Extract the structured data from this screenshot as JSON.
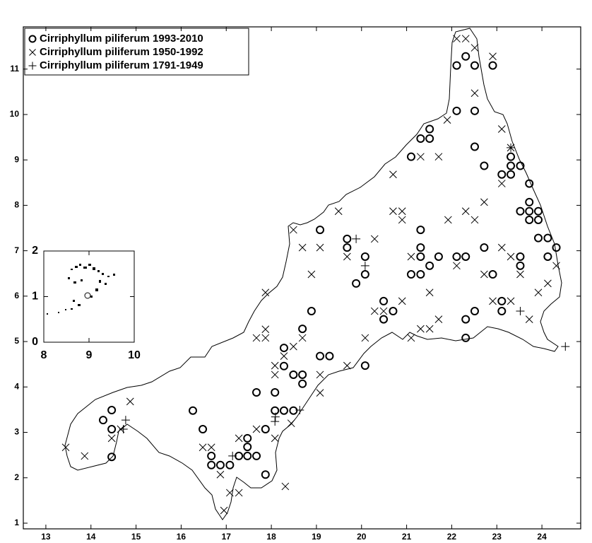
{
  "chart_data": [
    {
      "type": "scatter",
      "xlim": [
        12.5,
        24.86
      ],
      "ylim": [
        0.875,
        11.93
      ],
      "xticks": [
        13,
        14,
        15,
        16,
        17,
        18,
        19,
        20,
        21,
        22,
        23,
        24
      ],
      "yticks": [
        1,
        2,
        3,
        4,
        5,
        6,
        7,
        8,
        9,
        10,
        11
      ],
      "legend": "upper left",
      "series": [
        {
          "name": "Cirriphyllum piliferum 1993-2010",
          "color": "#000000",
          "marker": "circle",
          "x": [
            14.46,
            14.27,
            14.46,
            14.46,
            16.48,
            16.26,
            16.67,
            16.67,
            16.87,
            17.08,
            17.28,
            17.47,
            17.47,
            17.47,
            17.67,
            17.87,
            17.87,
            17.67,
            18.08,
            18.08,
            18.28,
            18.49,
            18.28,
            18.28,
            18.49,
            18.69,
            18.69,
            18.69,
            18.89,
            19.08,
            19.29,
            19.08,
            19.68,
            19.68,
            19.88,
            20.08,
            20.08,
            20.08,
            20.49,
            20.49,
            20.7,
            21.1,
            21.1,
            21.31,
            21.51,
            21.51,
            21.31,
            21.31,
            21.31,
            21.31,
            21.51,
            21.71,
            22.11,
            22.31,
            22.31,
            22.31,
            22.51,
            22.72,
            22.91,
            22.51,
            22.72,
            22.51,
            22.11,
            22.11,
            22.31,
            22.51,
            22.91,
            23.11,
            23.31,
            23.31,
            23.31,
            23.52,
            23.72,
            23.72,
            23.72,
            23.52,
            23.72,
            23.92,
            23.92,
            23.92,
            24.13,
            23.52,
            23.52,
            24.13,
            24.32,
            23.11,
            23.11
          ],
          "y": [
            3.49,
            3.27,
            3.07,
            2.46,
            3.07,
            3.48,
            2.48,
            2.28,
            2.28,
            2.28,
            2.48,
            2.87,
            2.68,
            2.48,
            2.48,
            3.07,
            2.07,
            3.88,
            3.88,
            3.48,
            3.48,
            3.48,
            4.46,
            4.86,
            4.27,
            4.27,
            4.07,
            5.28,
            5.67,
            4.68,
            4.68,
            7.46,
            7.26,
            7.07,
            6.28,
            6.48,
            6.87,
            4.47,
            5.89,
            5.49,
            5.67,
            6.48,
            9.07,
            9.47,
            9.68,
            9.47,
            7.46,
            7.07,
            6.87,
            6.48,
            6.67,
            6.87,
            6.87,
            6.87,
            5.49,
            5.08,
            5.67,
            7.07,
            6.48,
            9.29,
            8.87,
            10.08,
            10.08,
            11.08,
            11.28,
            11.08,
            11.08,
            8.68,
            9.07,
            8.87,
            8.68,
            8.87,
            8.48,
            8.07,
            7.87,
            7.87,
            7.68,
            7.87,
            7.68,
            7.28,
            7.28,
            6.87,
            6.67,
            6.87,
            7.07,
            5.89,
            5.67
          ]
        },
        {
          "name": "Cirriphyllum piliferum 1950-1992",
          "color": "#000000",
          "marker": "x",
          "x": [
            13.44,
            13.86,
            14.46,
            14.87,
            14.66,
            16.48,
            16.67,
            16.87,
            17.08,
            17.28,
            17.28,
            17.67,
            18.08,
            17.67,
            17.87,
            17.87,
            17.87,
            18.08,
            18.08,
            18.28,
            18.49,
            18.69,
            18.69,
            18.49,
            18.89,
            19.08,
            19.08,
            19.08,
            19.68,
            19.68,
            19.49,
            20.08,
            20.29,
            20.7,
            20.7,
            20.9,
            20.9,
            20.49,
            20.9,
            21.1,
            21.1,
            21.31,
            21.51,
            21.71,
            21.51,
            21.92,
            22.11,
            22.31,
            22.51,
            22.72,
            22.72,
            22.91,
            23.11,
            23.11,
            23.31,
            23.31,
            23.11,
            21.9,
            22.11,
            22.31,
            22.51,
            22.51,
            22.91,
            23.52,
            23.72,
            24.13,
            24.32,
            21.31,
            21.71,
            23.31,
            16.95,
            18.31,
            18.44,
            20.29,
            23.92
          ],
          "y": [
            2.67,
            2.48,
            2.87,
            3.68,
            3.07,
            2.67,
            2.67,
            2.07,
            1.67,
            1.67,
            2.87,
            3.07,
            2.87,
            5.08,
            5.27,
            5.08,
            6.08,
            4.47,
            4.27,
            4.68,
            4.89,
            5.08,
            7.07,
            7.46,
            6.48,
            7.07,
            3.87,
            4.27,
            4.47,
            6.87,
            7.87,
            5.08,
            7.26,
            8.68,
            7.87,
            7.87,
            7.68,
            5.67,
            5.89,
            6.87,
            5.08,
            9.07,
            6.08,
            9.07,
            5.28,
            7.68,
            6.67,
            7.87,
            7.68,
            8.07,
            6.48,
            5.89,
            7.07,
            8.48,
            6.87,
            9.27,
            9.68,
            9.88,
            11.67,
            11.67,
            11.47,
            10.47,
            11.28,
            6.48,
            5.49,
            6.28,
            6.67,
            5.28,
            5.49,
            5.89,
            1.28,
            1.81,
            3.2,
            5.67,
            6.08
          ]
        },
        {
          "name": "Cirriphyllum piliferum 1791-1949",
          "color": "#000000",
          "marker": "plus",
          "x": [
            14.72,
            14.77,
            18.09,
            18.63,
            19.88,
            20.08,
            23.52,
            24.52,
            23.31,
            17.14,
            18.08
          ],
          "y": [
            3.07,
            3.27,
            3.34,
            3.49,
            7.26,
            6.67,
            5.67,
            4.89,
            9.27,
            2.48,
            3.24
          ]
        }
      ]
    },
    {
      "type": "inset",
      "xlim": [
        8,
        10
      ],
      "ylim": [
        0,
        2
      ],
      "xticks": [
        8,
        9,
        10
      ],
      "yticks": [
        0,
        1,
        2
      ]
    }
  ]
}
